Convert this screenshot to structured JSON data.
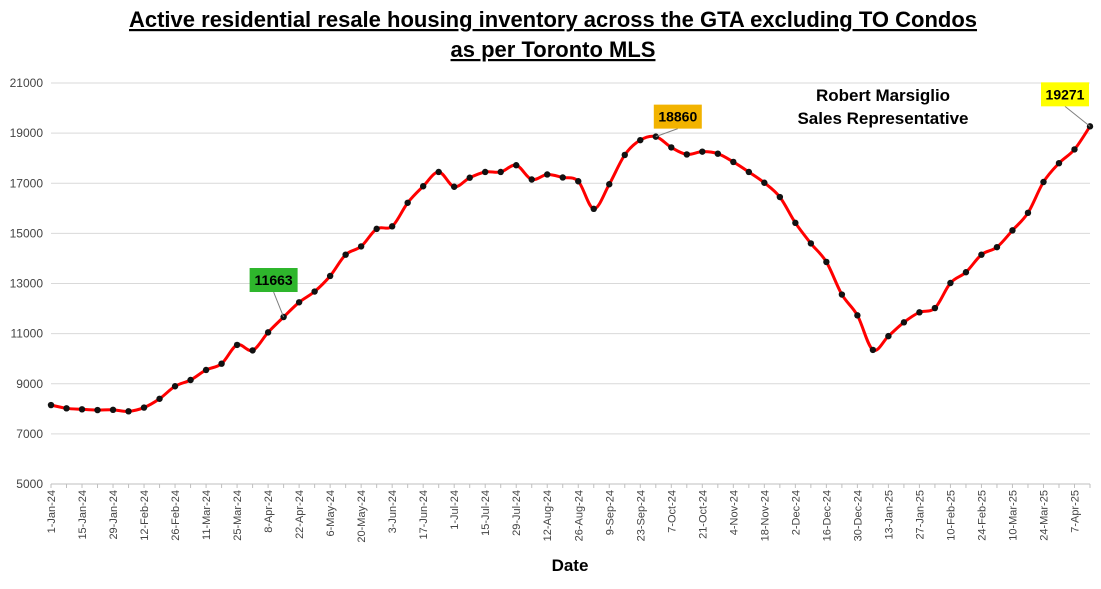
{
  "chart_data": {
    "type": "line",
    "title_lines": [
      "Active residential resale housing inventory across the GTA excluding TO Condos",
      "as per Toronto MLS"
    ],
    "xlabel": "Date",
    "ylabel": "",
    "ylim": [
      5000,
      21000
    ],
    "yticks": [
      "5000",
      "7000",
      "9000",
      "11000",
      "13000",
      "15000",
      "17000",
      "19000",
      "21000"
    ],
    "grid": true,
    "x": [
      "1-Jan-24",
      "8-Jan-24",
      "15-Jan-24",
      "22-Jan-24",
      "29-Jan-24",
      "5-Feb-24",
      "12-Feb-24",
      "19-Feb-24",
      "26-Feb-24",
      "4-Mar-24",
      "11-Mar-24",
      "18-Mar-24",
      "25-Mar-24",
      "1-Apr-24",
      "8-Apr-24",
      "15-Apr-24",
      "22-Apr-24",
      "29-Apr-24",
      "6-May-24",
      "13-May-24",
      "20-May-24",
      "27-May-24",
      "3-Jun-24",
      "10-Jun-24",
      "17-Jun-24",
      "24-Jun-24",
      "1-Jul-24",
      "8-Jul-24",
      "15-Jul-24",
      "22-Jul-24",
      "29-Jul-24",
      "5-Aug-24",
      "12-Aug-24",
      "19-Aug-24",
      "26-Aug-24",
      "2-Sep-24",
      "9-Sep-24",
      "16-Sep-24",
      "23-Sep-24",
      "30-Sep-24",
      "7-Oct-24",
      "14-Oct-24",
      "21-Oct-24",
      "28-Oct-24",
      "4-Nov-24",
      "11-Nov-24",
      "18-Nov-24",
      "25-Nov-24",
      "2-Dec-24",
      "9-Dec-24",
      "16-Dec-24",
      "23-Dec-24",
      "30-Dec-24",
      "6-Jan-25",
      "13-Jan-25",
      "20-Jan-25",
      "27-Jan-25",
      "3-Feb-25",
      "10-Feb-25",
      "17-Feb-25",
      "24-Feb-25",
      "3-Mar-25",
      "10-Mar-25",
      "17-Mar-25",
      "24-Mar-25",
      "31-Mar-25",
      "7-Apr-25",
      "14-Apr-25"
    ],
    "xtick_labels": [
      "1-Jan-24",
      "15-Jan-24",
      "29-Jan-24",
      "12-Feb-24",
      "26-Feb-24",
      "11-Mar-24",
      "25-Mar-24",
      "8-Apr-24",
      "22-Apr-24",
      "6-May-24",
      "20-May-24",
      "3-Jun-24",
      "17-Jun-24",
      "1-Jul-24",
      "15-Jul-24",
      "29-Jul-24",
      "12-Aug-24",
      "26-Aug-24",
      "9-Sep-24",
      "23-Sep-24",
      "7-Oct-24",
      "21-Oct-24",
      "4-Nov-24",
      "18-Nov-24",
      "2-Dec-24",
      "16-Dec-24",
      "30-Dec-24",
      "13-Jan-25",
      "27-Jan-25",
      "10-Feb-25",
      "24-Feb-25",
      "10-Mar-25",
      "24-Mar-25",
      "7-Apr-25"
    ],
    "series": [
      {
        "values": [
          8150,
          8020,
          7980,
          7950,
          7960,
          7900,
          8050,
          8400,
          8900,
          9150,
          9550,
          9800,
          10550,
          10330,
          11050,
          11663,
          12250,
          12680,
          13300,
          14150,
          14480,
          15180,
          15280,
          16220,
          16880,
          17450,
          16860,
          17220,
          17450,
          17450,
          17720,
          17150,
          17350,
          17230,
          17080,
          15980,
          16960,
          18130,
          18720,
          18860,
          18430,
          18150,
          18260,
          18180,
          17850,
          17450,
          17020,
          16450,
          15420,
          14600,
          13860,
          12560,
          11730,
          10350,
          10900,
          11450,
          11850,
          12020,
          13020,
          13450,
          14150,
          14450,
          15120,
          15820,
          17050,
          17800,
          18350,
          19271
        ]
      }
    ],
    "line_color": "#ff0000",
    "marker_color": "#111111",
    "annotations": [
      {
        "label": "11663",
        "x": "15-Apr-24",
        "y": 11663,
        "box_color": "#2eb62c"
      },
      {
        "label": "18860",
        "x": "30-Sep-24",
        "y": 18860,
        "box_color": "#f2b300"
      },
      {
        "label": "19271",
        "x": "14-Apr-25",
        "y": 19271,
        "box_color": "#ffff00"
      }
    ],
    "note_lines": [
      "Robert Marsiglio",
      "Sales Representative"
    ]
  }
}
